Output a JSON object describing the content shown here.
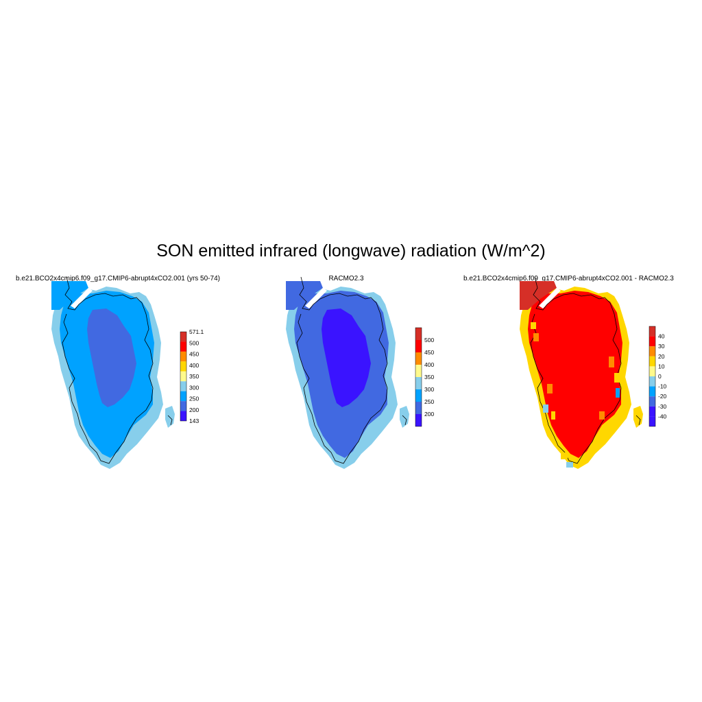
{
  "title": "SON emitted infrared (longwave) radiation (W/m^2)",
  "chart_data": [
    {
      "type": "heatmap",
      "panel_title": "b.e21.BCO2x4cmip6.f09_g17.CMIP6-abrupt4xCO2.001 (yrs 50-74)",
      "colorbar": {
        "labels": [
          "571.1",
          "500",
          "450",
          "400",
          "350",
          "300",
          "250",
          "200",
          "143"
        ],
        "colors": [
          "#d62f27",
          "#ff0000",
          "#ff8c00",
          "#ffd700",
          "#fffa8c",
          "#87ceeb",
          "#00a2ff",
          "#4169e1",
          "#3a13ff"
        ]
      },
      "regions": {
        "coast": "#87ceeb",
        "outer_ice": "#00a2ff",
        "interior": "#4169e1",
        "north_tip": "#00a2ff"
      }
    },
    {
      "type": "heatmap",
      "panel_title": "RACMO2.3",
      "colorbar": {
        "labels": [
          "500",
          "450",
          "400",
          "350",
          "300",
          "250",
          "200"
        ],
        "colors": [
          "#d62f27",
          "#ff0000",
          "#ff8c00",
          "#fffa8c",
          "#87ceeb",
          "#00a2ff",
          "#4169e1",
          "#3a13ff"
        ]
      },
      "regions": {
        "coast": "#87ceeb",
        "outer_ice": "#4169e1",
        "interior": "#3a13ff",
        "north_tip": "#4169e1"
      }
    },
    {
      "type": "heatmap",
      "panel_title": "b.e21.BCO2x4cmip6.f09_g17.CMIP6-abrupt4xCO2.001 - RACMO2.3",
      "colorbar": {
        "labels": [
          "40",
          "30",
          "20",
          "10",
          "0",
          "-10",
          "-20",
          "-30",
          "-40"
        ],
        "colors": [
          "#d62f27",
          "#ff0000",
          "#ff8c00",
          "#ffd700",
          "#fffa8c",
          "#87ceeb",
          "#00a2ff",
          "#4169e1",
          "#3a13ff",
          "#3a13ff"
        ]
      },
      "regions": {
        "coast": "#ffd700",
        "outer_ice": "#ff0000",
        "interior": "#ff0000",
        "north_tip": "#d62f27"
      }
    }
  ]
}
